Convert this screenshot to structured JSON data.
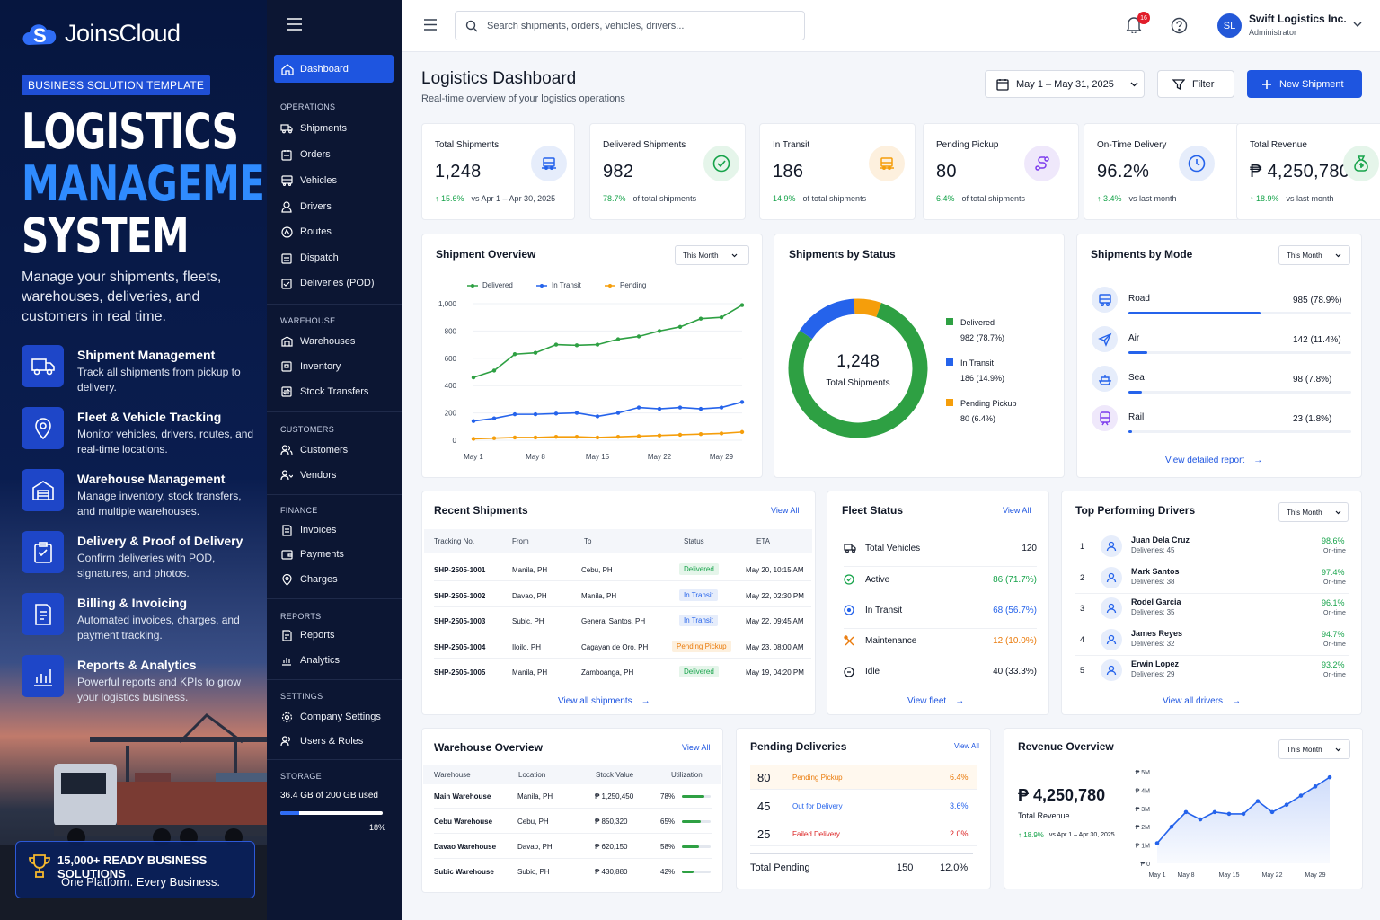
{
  "promo": {
    "brand": "JoinsCloud",
    "tag": "BUSINESS SOLUTION TEMPLATE",
    "hero_line1": "LOGISTICS",
    "hero_line2": "MANAGEMENT",
    "hero_line3": "SYSTEM",
    "description": "Manage your shipments, fleets, warehouses, deliveries, and customers in real time.",
    "features": [
      {
        "title": "Shipment Management",
        "desc": "Track all shipments from pickup to delivery.",
        "icon": "truck-icon"
      },
      {
        "title": "Fleet & Vehicle Tracking",
        "desc": "Monitor vehicles, drivers, routes, and real-time locations.",
        "icon": "location-pin-icon"
      },
      {
        "title": "Warehouse Management",
        "desc": "Manage inventory, stock transfers, and multiple warehouses.",
        "icon": "warehouse-icon"
      },
      {
        "title": "Delivery & Proof of Delivery",
        "desc": "Confirm deliveries with POD, signatures, and photos.",
        "icon": "clipboard-check-icon"
      },
      {
        "title": "Billing & Invoicing",
        "desc": "Automated invoices, charges, and payment tracking.",
        "icon": "invoice-icon"
      },
      {
        "title": "Reports & Analytics",
        "desc": "Powerful reports and KPIs to grow your logistics business.",
        "icon": "bar-chart-icon"
      }
    ],
    "badge_title": "15,000+ READY BUSINESS SOLUTIONS",
    "badge_sub": "One Platform. Every Business."
  },
  "nav": {
    "active": "Dashboard",
    "sections": [
      {
        "title": "OPERATIONS",
        "items": [
          "Shipments",
          "Orders",
          "Vehicles",
          "Drivers",
          "Routes",
          "Dispatch",
          "Deliveries (POD)"
        ]
      },
      {
        "title": "WAREHOUSE",
        "items": [
          "Warehouses",
          "Inventory",
          "Stock Transfers"
        ]
      },
      {
        "title": "CUSTOMERS",
        "items": [
          "Customers",
          "Vendors"
        ]
      },
      {
        "title": "FINANCE",
        "items": [
          "Invoices",
          "Payments",
          "Charges"
        ]
      },
      {
        "title": "REPORTS",
        "items": [
          "Reports",
          "Analytics"
        ]
      },
      {
        "title": "SETTINGS",
        "items": [
          "Company Settings",
          "Users & Roles"
        ]
      }
    ],
    "storage_title": "STORAGE",
    "storage_text": "36.4 GB of 200 GB used",
    "storage_pct": "18%",
    "storage_fraction": 0.18
  },
  "topbar": {
    "search_placeholder": "Search shipments, orders, vehicles, drivers...",
    "notif_count": "16",
    "user_initials": "SL",
    "user_name": "Swift Logistics Inc.",
    "user_role": "Administrator"
  },
  "page": {
    "title": "Logistics Dashboard",
    "subtitle": "Real-time overview of your logistics operations",
    "date_range": "May 1 – May 31, 2025",
    "filter": "Filter",
    "new_shipment": "New Shipment"
  },
  "kpis": [
    {
      "label": "Total Shipments",
      "value": "1,248",
      "delta": "↑ 15.6%",
      "note": "vs Apr 1 – Apr 30, 2025",
      "color": "#2563eb",
      "bg": "#e6edfb",
      "icon": "truck-icon"
    },
    {
      "label": "Delivered Shipments",
      "value": "982",
      "delta": "78.7%",
      "note": "of total shipments",
      "color": "#16a34a",
      "bg": "#e5f5ea",
      "icon": "check-circle-icon"
    },
    {
      "label": "In Transit",
      "value": "186",
      "delta": "14.9%",
      "note": "of total shipments",
      "color": "#f59e0b",
      "bg": "#fdf0de",
      "icon": "truck-icon"
    },
    {
      "label": "Pending Pickup",
      "value": "80",
      "delta": "6.4%",
      "note": "of total shipments",
      "color": "#7c3aed",
      "bg": "#efe8fb",
      "icon": "route-icon"
    },
    {
      "label": "On-Time Delivery",
      "value": "96.2%",
      "delta": "↑ 3.4%",
      "note": "vs last month",
      "color": "#2563eb",
      "bg": "#e6edfb",
      "icon": "clock-icon"
    },
    {
      "label": "Total Revenue",
      "value": "₱ 4,250,780",
      "delta": "↑ 18.9%",
      "note": "vs last month",
      "color": "#16a34a",
      "bg": "#e5f5ea",
      "icon": "money-bag-icon"
    }
  ],
  "overview": {
    "title": "Shipment Overview",
    "period": "This Month"
  },
  "status_card": {
    "title": "Shipments by Status",
    "total": "1,248",
    "total_label": "Total Shipments",
    "items": [
      {
        "name": "Delivered",
        "value": "982 (78.7%)",
        "color": "#2ea043",
        "share": 0.787
      },
      {
        "name": "In Transit",
        "value": "186 (14.9%)",
        "color": "#2563eb",
        "share": 0.149
      },
      {
        "name": "Pending Pickup",
        "value": "80 (6.4%)",
        "color": "#f59e0b",
        "share": 0.064
      }
    ]
  },
  "mode_card": {
    "title": "Shipments by Mode",
    "period": "This Month",
    "link": "View detailed report",
    "items": [
      {
        "name": "Road",
        "value": "985 (78.9%)",
        "share": 0.789,
        "icon": "truck-icon"
      },
      {
        "name": "Air",
        "value": "142 (11.4%)",
        "share": 0.114,
        "icon": "plane-icon"
      },
      {
        "name": "Sea",
        "value": "98 (7.8%)",
        "share": 0.078,
        "icon": "ship-icon"
      },
      {
        "name": "Rail",
        "value": "23 (1.8%)",
        "share": 0.018,
        "icon": "train-icon"
      }
    ]
  },
  "recent": {
    "title": "Recent Shipments",
    "view_all": "View All",
    "link": "View all shipments",
    "headers": [
      "Tracking No.",
      "From",
      "To",
      "Status",
      "ETA"
    ],
    "rows": [
      {
        "id": "SHP-2505-1001",
        "from": "Manila, PH",
        "to": "Cebu, PH",
        "status": "Delivered",
        "eta": "May 20, 10:15 AM",
        "fg": "#16a34a",
        "bg": "#e5f5ea"
      },
      {
        "id": "SHP-2505-1002",
        "from": "Davao, PH",
        "to": "Manila, PH",
        "status": "In Transit",
        "eta": "May 22, 02:30 PM",
        "fg": "#2563eb",
        "bg": "#e6edfb"
      },
      {
        "id": "SHP-2505-1003",
        "from": "Subic, PH",
        "to": "General Santos, PH",
        "status": "In Transit",
        "eta": "May 22, 09:45 AM",
        "fg": "#2563eb",
        "bg": "#e6edfb"
      },
      {
        "id": "SHP-2505-1004",
        "from": "Iloilo, PH",
        "to": "Cagayan de Oro, PH",
        "status": "Pending Pickup",
        "eta": "May 23, 08:00 AM",
        "fg": "#ea7b0c",
        "bg": "#fdf0de"
      },
      {
        "id": "SHP-2505-1005",
        "from": "Manila, PH",
        "to": "Zamboanga, PH",
        "status": "Delivered",
        "eta": "May 19, 04:20 PM",
        "fg": "#16a34a",
        "bg": "#e5f5ea"
      }
    ]
  },
  "fleet": {
    "title": "Fleet Status",
    "view_all": "View All",
    "link": "View fleet",
    "total_label": "Total Vehicles",
    "total": "120",
    "rows": [
      {
        "name": "Active",
        "value": "86 (71.7%)",
        "color": "#16a34a",
        "icon": "check-circle-icon"
      },
      {
        "name": "In Transit",
        "value": "68 (56.7%)",
        "color": "#2563eb",
        "icon": "target-icon"
      },
      {
        "name": "Maintenance",
        "value": "12 (10.0%)",
        "color": "#ea7b0c",
        "icon": "wrench-icon"
      },
      {
        "name": "Idle",
        "value": "40 (33.3%)",
        "color": "#111827",
        "icon": "pause-icon"
      }
    ]
  },
  "drivers": {
    "title": "Top Performing Drivers",
    "period": "This Month",
    "link": "View all drivers",
    "rows": [
      {
        "rank": "1",
        "name": "Juan Dela Cruz",
        "deliveries": "Deliveries: 45",
        "rate": "98.6%",
        "label": "On-time"
      },
      {
        "rank": "2",
        "name": "Mark Santos",
        "deliveries": "Deliveries: 38",
        "rate": "97.4%",
        "label": "On-time"
      },
      {
        "rank": "3",
        "name": "Rodel Garcia",
        "deliveries": "Deliveries: 35",
        "rate": "96.1%",
        "label": "On-time"
      },
      {
        "rank": "4",
        "name": "James Reyes",
        "deliveries": "Deliveries: 32",
        "rate": "94.7%",
        "label": "On-time"
      },
      {
        "rank": "5",
        "name": "Erwin Lopez",
        "deliveries": "Deliveries: 29",
        "rate": "93.2%",
        "label": "On-time"
      }
    ]
  },
  "warehouse": {
    "title": "Warehouse Overview",
    "view_all": "View All",
    "headers": [
      "Warehouse",
      "Location",
      "Stock Value",
      "Utilization"
    ],
    "rows": [
      {
        "name": "Main Warehouse",
        "loc": "Manila, PH",
        "value": "₱ 1,250,450",
        "util": "78%",
        "frac": 0.78
      },
      {
        "name": "Cebu Warehouse",
        "loc": "Cebu, PH",
        "value": "₱ 850,320",
        "util": "65%",
        "frac": 0.65
      },
      {
        "name": "Davao Warehouse",
        "loc": "Davao, PH",
        "value": "₱ 620,150",
        "util": "58%",
        "frac": 0.58
      },
      {
        "name": "Subic Warehouse",
        "loc": "Subic, PH",
        "value": "₱ 430,880",
        "util": "42%",
        "frac": 0.42
      }
    ]
  },
  "pending": {
    "title": "Pending Deliveries",
    "view_all": "View All",
    "rows": [
      {
        "count": "80",
        "label": "Pending Pickup",
        "pct": "6.4%",
        "color": "#ea7b0c",
        "bg": "#fff8ee"
      },
      {
        "count": "45",
        "label": "Out for Delivery",
        "pct": "3.6%",
        "color": "#2563eb",
        "bg": "#ffffff"
      },
      {
        "count": "25",
        "label": "Failed Delivery",
        "pct": "2.0%",
        "color": "#dc2626",
        "bg": "#ffffff"
      }
    ],
    "total_label": "Total Pending",
    "total": "150",
    "total_pct": "12.0%"
  },
  "revenue": {
    "title": "Revenue Overview",
    "period": "This Month",
    "value": "₱ 4,250,780",
    "label": "Total Revenue",
    "delta": "↑ 18.9%",
    "note": "vs Apr 1 – Apr 30, 2025"
  },
  "chart_data": [
    {
      "type": "line",
      "title": "Shipment Overview",
      "x": [
        "May 1",
        "May 4",
        "May 6",
        "May 8",
        "May 10",
        "May 12",
        "May 15",
        "May 17",
        "May 19",
        "May 22",
        "May 24",
        "May 26",
        "May 29",
        "May 31"
      ],
      "x_ticks": [
        "May 1",
        "May 8",
        "May 15",
        "May 22",
        "May 29"
      ],
      "y_ticks": [
        0,
        200,
        400,
        600,
        800,
        "1,000"
      ],
      "ylim": [
        0,
        1000
      ],
      "legend": "top",
      "series": [
        {
          "name": "Delivered",
          "color": "#2ea043",
          "values": [
            460,
            510,
            630,
            640,
            700,
            695,
            700,
            740,
            760,
            800,
            830,
            890,
            900,
            990
          ]
        },
        {
          "name": "In Transit",
          "color": "#2563eb",
          "values": [
            140,
            160,
            190,
            190,
            195,
            200,
            175,
            200,
            240,
            230,
            240,
            230,
            240,
            280
          ]
        },
        {
          "name": "Pending",
          "color": "#f59e0b",
          "values": [
            10,
            15,
            20,
            20,
            25,
            25,
            20,
            25,
            30,
            35,
            40,
            45,
            50,
            60
          ]
        }
      ]
    },
    {
      "type": "pie",
      "title": "Shipments by Status",
      "categories": [
        "Delivered",
        "In Transit",
        "Pending Pickup"
      ],
      "values": [
        982,
        186,
        80
      ]
    },
    {
      "type": "bar",
      "title": "Shipments by Mode",
      "categories": [
        "Road",
        "Air",
        "Sea",
        "Rail"
      ],
      "values": [
        985,
        142,
        98,
        23
      ]
    },
    {
      "type": "area",
      "title": "Revenue Overview",
      "x": [
        "May 1",
        "May 5",
        "May 8",
        "May 10",
        "May 12",
        "May 15",
        "May 18",
        "May 20",
        "May 22",
        "May 25",
        "May 27",
        "May 29",
        "May 31"
      ],
      "x_ticks": [
        "May 1",
        "May 8",
        "May 15",
        "May 22",
        "May 29"
      ],
      "y_ticks": [
        "₱ 0",
        "₱ 1M",
        "₱ 2M",
        "₱ 3M",
        "₱ 4M",
        "₱ 5M"
      ],
      "ylim": [
        0,
        5000000
      ],
      "series": [
        {
          "name": "",
          "color": "#2563eb",
          "values": [
            1100000,
            2000000,
            2800000,
            2400000,
            2800000,
            2700000,
            2700000,
            3400000,
            2800000,
            3200000,
            3700000,
            4200000,
            4700000
          ]
        }
      ]
    }
  ]
}
